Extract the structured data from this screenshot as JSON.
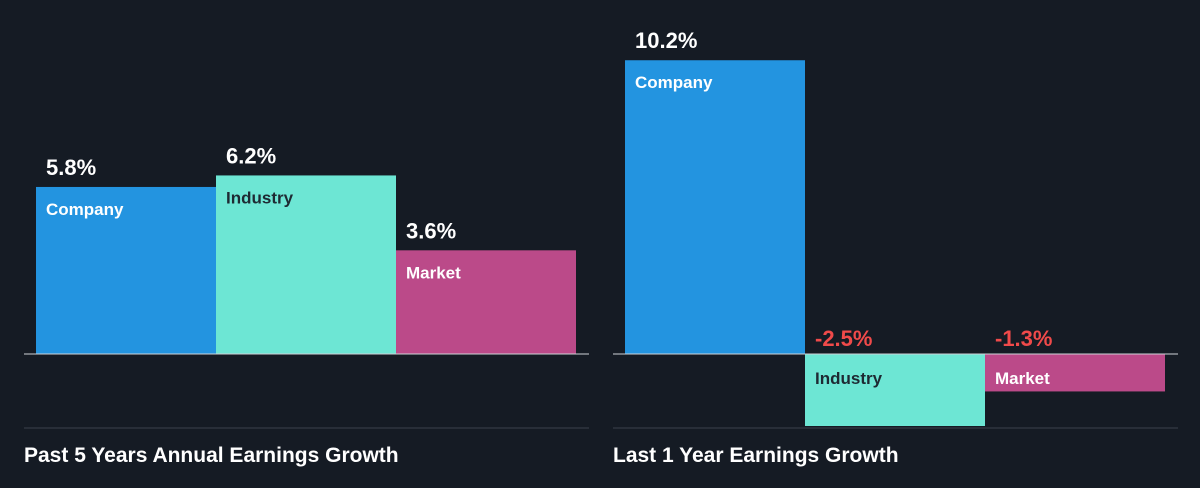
{
  "colors": {
    "background": "#151b24",
    "company": "#2394e0",
    "industry": "#6de6d4",
    "market": "#bb4a89",
    "positive_text": "#ffffff",
    "negative_text": "#f04a4a",
    "axis": "#cfd3d8",
    "divider": "#3a424d"
  },
  "chart_data": [
    {
      "type": "bar",
      "title": "Past 5 Years Annual Earnings Growth",
      "categories": [
        "Company",
        "Industry",
        "Market"
      ],
      "values": [
        5.8,
        6.2,
        3.6
      ],
      "value_labels": [
        "5.8%",
        "6.2%",
        "3.6%"
      ],
      "unit": "%"
    },
    {
      "type": "bar",
      "title": "Last 1 Year Earnings Growth",
      "categories": [
        "Company",
        "Industry",
        "Market"
      ],
      "values": [
        10.2,
        -2.5,
        -1.3
      ],
      "value_labels": [
        "10.2%",
        "-2.5%",
        "-1.3%"
      ],
      "unit": "%"
    }
  ]
}
